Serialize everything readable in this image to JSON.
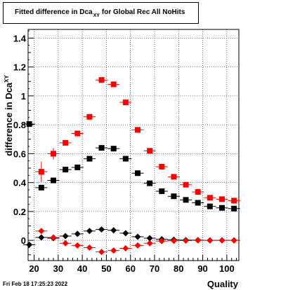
{
  "title": {
    "main": "Fitted difference in Dca",
    "subscript": "XY",
    "suffix": "for Global Rec All NoHits"
  },
  "footer": {
    "timestamp": "Fri Feb 18 17:25:23 2022"
  },
  "colors": {
    "black_series": "#000000",
    "red_series": "#ff0000",
    "grid": "#000000",
    "background": "#ffffff"
  },
  "chart_data": {
    "type": "scatter",
    "title": "Fitted difference in DcaXY for Global Rec All NoHits",
    "xlabel": "Quality",
    "ylabel": "difference in DcaXY",
    "xlim": [
      17.5,
      105
    ],
    "ylim": [
      -0.14,
      1.46
    ],
    "xticks": [
      20,
      30,
      40,
      50,
      60,
      70,
      80,
      90,
      100
    ],
    "yticks": [
      0,
      0.2,
      0.4,
      0.6,
      0.8,
      1,
      1.2,
      1.4
    ],
    "ytick_labels": [
      "0",
      "0.2",
      "0.4",
      "0.6",
      "0.8",
      "1",
      "1.2",
      "1.4"
    ],
    "xtick_labels": [
      "20",
      "30",
      "40",
      "50",
      "60",
      "70",
      "80",
      "90",
      "100"
    ],
    "grid": true,
    "series": [
      {
        "marker": "square",
        "color": "#000000",
        "x": [
          18,
          23,
          28,
          33,
          38,
          43,
          48,
          53,
          58,
          63,
          68,
          73,
          78,
          83,
          88,
          93,
          98,
          103
        ],
        "y": [
          0.805,
          0.365,
          0.415,
          0.49,
          0.505,
          0.565,
          0.64,
          0.635,
          0.565,
          0.465,
          0.395,
          0.34,
          0.305,
          0.28,
          0.26,
          0.235,
          0.225,
          0.22
        ],
        "yerr": [
          0.01,
          0.012,
          0.015,
          0.01,
          0.01,
          0.01,
          0.01,
          0.01,
          0.01,
          0.01,
          0.01,
          0.01,
          0.01,
          0.01,
          0.01,
          0.01,
          0.01,
          0.01
        ]
      },
      {
        "marker": "square",
        "color": "#ff0000",
        "x": [
          23,
          28,
          33,
          38,
          43,
          48,
          53,
          58,
          63,
          68,
          73,
          78,
          83,
          88,
          93,
          98,
          103
        ],
        "y": [
          0.475,
          0.6,
          0.675,
          0.74,
          0.855,
          1.11,
          1.08,
          0.955,
          0.765,
          0.62,
          0.51,
          0.44,
          0.385,
          0.335,
          0.295,
          0.285,
          0.275
        ],
        "yerr": [
          0.07,
          0.04,
          0.015,
          0.012,
          0.01,
          0.01,
          0.01,
          0.01,
          0.01,
          0.01,
          0.01,
          0.01,
          0.01,
          0.01,
          0.01,
          0.01,
          0.01
        ]
      },
      {
        "marker": "diamond",
        "color": "#000000",
        "x": [
          18,
          23,
          28,
          33,
          38,
          43,
          48,
          53,
          58,
          63,
          68,
          73,
          78,
          83,
          88,
          93,
          98,
          103
        ],
        "y": [
          -0.03,
          0.02,
          0.015,
          0.03,
          0.045,
          0.065,
          0.075,
          0.07,
          0.05,
          0.025,
          0.015,
          0.008,
          0.004,
          0.002,
          0.002,
          0.0,
          0.0,
          0.0
        ],
        "yerr": [
          0.005,
          0.005,
          0.005,
          0.005,
          0.005,
          0.005,
          0.005,
          0.005,
          0.005,
          0.005,
          0.005,
          0.005,
          0.005,
          0.005,
          0.005,
          0.005,
          0.005,
          0.005
        ]
      },
      {
        "marker": "diamond",
        "color": "#ff0000",
        "x": [
          23,
          28,
          33,
          38,
          43,
          48,
          53,
          58,
          63,
          68,
          73,
          78,
          83,
          88,
          93,
          98,
          103
        ],
        "y": [
          0.065,
          0.02,
          -0.02,
          -0.035,
          -0.05,
          -0.08,
          -0.07,
          -0.055,
          -0.035,
          -0.02,
          -0.005,
          -0.003,
          -0.002,
          0.0,
          0.0,
          0.0,
          0.0
        ],
        "yerr": [
          0.01,
          0.008,
          0.005,
          0.005,
          0.005,
          0.005,
          0.005,
          0.005,
          0.005,
          0.005,
          0.005,
          0.005,
          0.005,
          0.005,
          0.005,
          0.005,
          0.005
        ]
      }
    ]
  }
}
